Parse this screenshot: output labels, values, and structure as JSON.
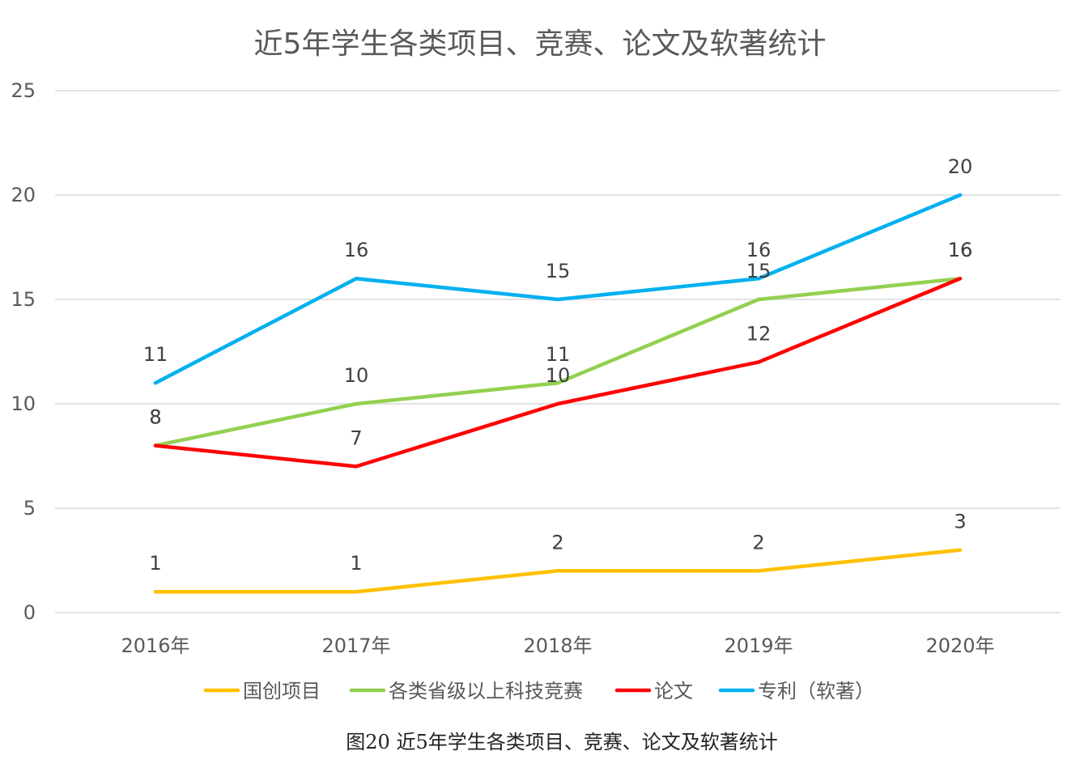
{
  "chart_data": {
    "type": "line",
    "title": "近5年学生各类项目、竞赛、论文及软著统计",
    "categories": [
      "2016年",
      "2017年",
      "2018年",
      "2019年",
      "2020年"
    ],
    "ylim": [
      0,
      25
    ],
    "yticks": [
      0,
      5,
      10,
      15,
      20,
      25
    ],
    "grid": true,
    "legend_position": "bottom",
    "series": [
      {
        "name": "国创项目",
        "color": "#FFC000",
        "values": [
          1,
          1,
          2,
          2,
          3
        ]
      },
      {
        "name": "各类省级以上科技竞赛",
        "color": "#92D050",
        "values": [
          8,
          10,
          11,
          15,
          16
        ]
      },
      {
        "name": "论文",
        "color": "#FF0000",
        "values": [
          8,
          7,
          10,
          12,
          16
        ]
      },
      {
        "name": "专利（软著）",
        "color": "#00B0F0",
        "values": [
          11,
          16,
          15,
          16,
          20
        ]
      }
    ]
  },
  "caption": "图20 近5年学生各类项目、竞赛、论文及软著统计"
}
